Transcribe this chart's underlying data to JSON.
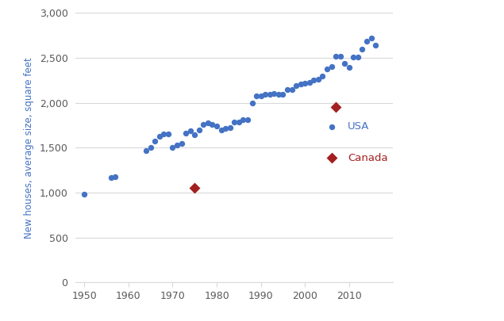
{
  "usa_data": [
    [
      1950,
      983
    ],
    [
      1956,
      1170
    ],
    [
      1957,
      1175
    ],
    [
      1964,
      1470
    ],
    [
      1965,
      1500
    ],
    [
      1966,
      1575
    ],
    [
      1967,
      1625
    ],
    [
      1968,
      1652
    ],
    [
      1969,
      1650
    ],
    [
      1970,
      1500
    ],
    [
      1971,
      1525
    ],
    [
      1972,
      1550
    ],
    [
      1973,
      1660
    ],
    [
      1974,
      1690
    ],
    [
      1975,
      1645
    ],
    [
      1976,
      1700
    ],
    [
      1977,
      1755
    ],
    [
      1978,
      1780
    ],
    [
      1979,
      1760
    ],
    [
      1980,
      1740
    ],
    [
      1981,
      1700
    ],
    [
      1982,
      1710
    ],
    [
      1983,
      1725
    ],
    [
      1984,
      1785
    ],
    [
      1985,
      1785
    ],
    [
      1986,
      1810
    ],
    [
      1987,
      1810
    ],
    [
      1988,
      2000
    ],
    [
      1989,
      2080
    ],
    [
      1990,
      2080
    ],
    [
      1991,
      2095
    ],
    [
      1992,
      2095
    ],
    [
      1993,
      2100
    ],
    [
      1994,
      2095
    ],
    [
      1995,
      2095
    ],
    [
      1996,
      2150
    ],
    [
      1997,
      2150
    ],
    [
      1998,
      2190
    ],
    [
      1999,
      2210
    ],
    [
      2000,
      2215
    ],
    [
      2001,
      2230
    ],
    [
      2002,
      2250
    ],
    [
      2003,
      2265
    ],
    [
      2004,
      2300
    ],
    [
      2005,
      2380
    ],
    [
      2006,
      2400
    ],
    [
      2007,
      2521
    ],
    [
      2008,
      2520
    ],
    [
      2009,
      2438
    ],
    [
      2010,
      2392
    ],
    [
      2011,
      2505
    ],
    [
      2012,
      2505
    ],
    [
      2013,
      2600
    ],
    [
      2014,
      2680
    ],
    [
      2015,
      2720
    ],
    [
      2016,
      2640
    ]
  ],
  "canada_data": [
    [
      1975,
      1050
    ],
    [
      2007,
      1950
    ]
  ],
  "usa_color": "#4472c4",
  "canada_color": "#a32020",
  "ylabel": "New houses, average size, square feet",
  "xlim": [
    1948,
    2020
  ],
  "ylim": [
    0,
    3000
  ],
  "yticks": [
    0,
    500,
    1000,
    1500,
    2000,
    2500,
    3000
  ],
  "xticks": [
    1950,
    1960,
    1970,
    1980,
    1990,
    2000,
    2010
  ],
  "legend_usa": "USA",
  "legend_canada": "Canada",
  "marker_size_usa": 28,
  "marker_size_canada": 50,
  "tick_color": "#595959",
  "grid_color": "#d9d9d9"
}
